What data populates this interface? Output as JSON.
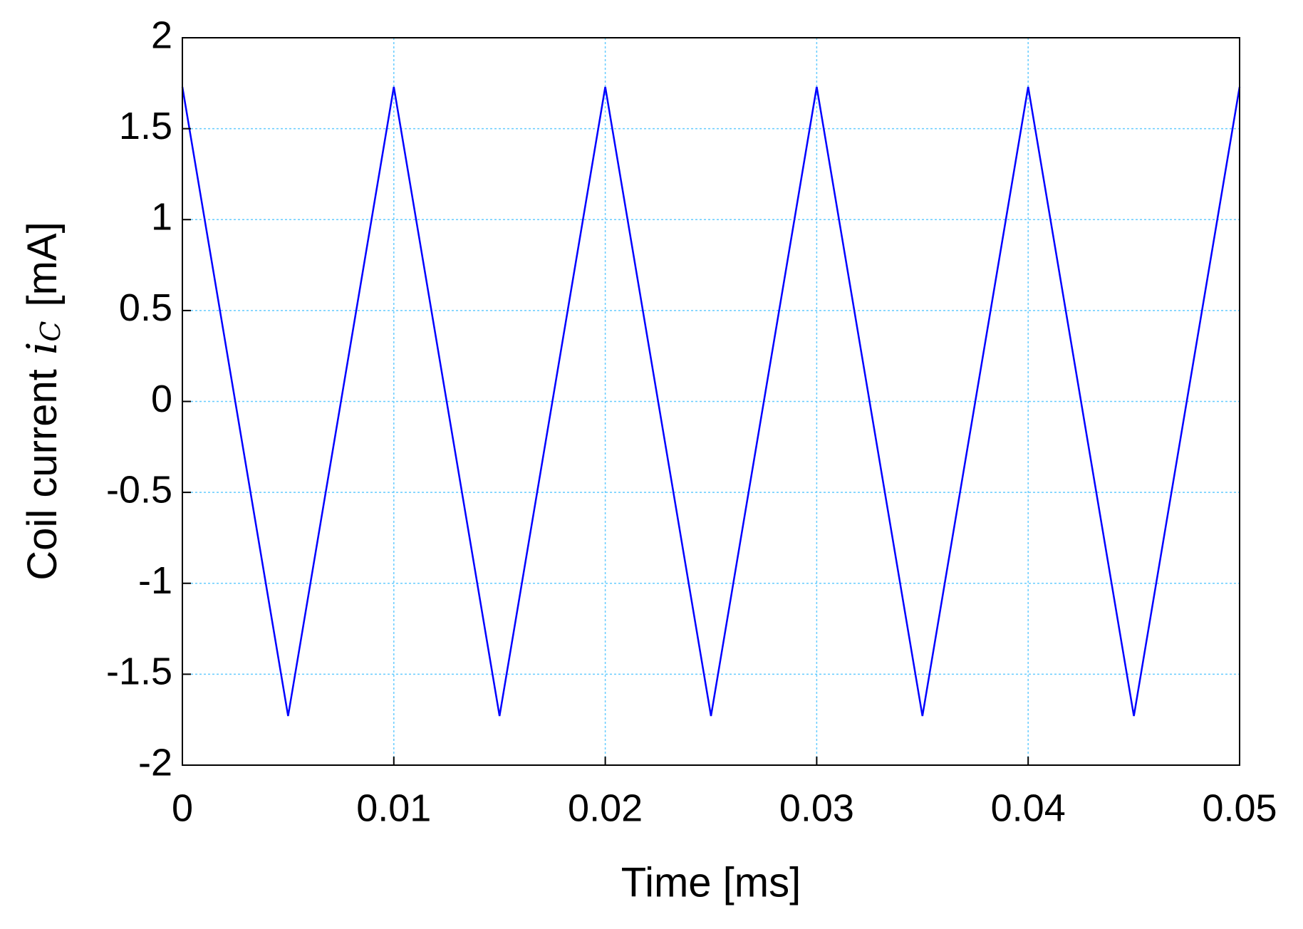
{
  "chart_data": {
    "type": "line",
    "x_label": "Time [ms]",
    "y_label": {
      "text": "Coil current",
      "symbol": "i",
      "subscript": "C",
      "unit": "[mA]"
    },
    "x": [
      0,
      0.005,
      0.01,
      0.015,
      0.02,
      0.025,
      0.03,
      0.035,
      0.04,
      0.045,
      0.05
    ],
    "series": [
      {
        "color": "#0000ff",
        "values": [
          1.73,
          -1.73,
          1.73,
          -1.73,
          1.73,
          -1.73,
          1.73,
          -1.73,
          1.73,
          -1.73,
          1.73
        ]
      }
    ],
    "xlim": [
      0,
      0.05
    ],
    "xticks": [
      0,
      0.01,
      0.02,
      0.03,
      0.04,
      0.05
    ],
    "ylim": [
      -2,
      2
    ],
    "yticks": [
      -2,
      -1.5,
      -1,
      -0.5,
      0,
      0.5,
      1,
      1.5,
      2
    ],
    "grid": true,
    "grid_color": "#66ccff"
  }
}
